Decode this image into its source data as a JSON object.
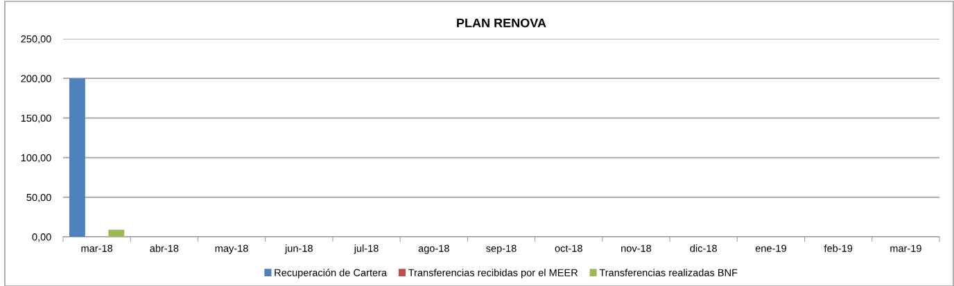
{
  "chart_data": {
    "type": "bar",
    "title": "PLAN RENOVA",
    "categories": [
      "mar-18",
      "abr-18",
      "may-18",
      "jun-18",
      "jul-18",
      "ago-18",
      "sep-18",
      "oct-18",
      "nov-18",
      "dic-18",
      "ene-19",
      "feb-19",
      "mar-19"
    ],
    "series": [
      {
        "name": "Recuperación de Cartera",
        "color": "#4f81bd",
        "values": [
          200,
          0,
          0,
          0,
          0,
          0,
          0,
          0,
          0,
          0,
          0,
          0,
          0
        ]
      },
      {
        "name": "Transferencias recibidas por el MEER",
        "color": "#c0504d",
        "values": [
          0,
          0,
          0,
          0,
          0,
          0,
          0,
          0,
          0,
          0,
          0,
          0,
          0
        ]
      },
      {
        "name": "Transferencias realizadas BNF",
        "color": "#9bbb59",
        "values": [
          9,
          0,
          0,
          0,
          0,
          0,
          0,
          0,
          0,
          0,
          0,
          0,
          0
        ]
      }
    ],
    "ylim": [
      0,
      250
    ],
    "yticks": [
      {
        "value": 0,
        "label": "0,00"
      },
      {
        "value": 50,
        "label": "50,00"
      },
      {
        "value": 100,
        "label": "100,00"
      },
      {
        "value": 150,
        "label": "150,00"
      },
      {
        "value": 200,
        "label": "200,00"
      },
      {
        "value": 250,
        "label": "250,00"
      }
    ],
    "grid": "y",
    "legend": "bottom"
  }
}
